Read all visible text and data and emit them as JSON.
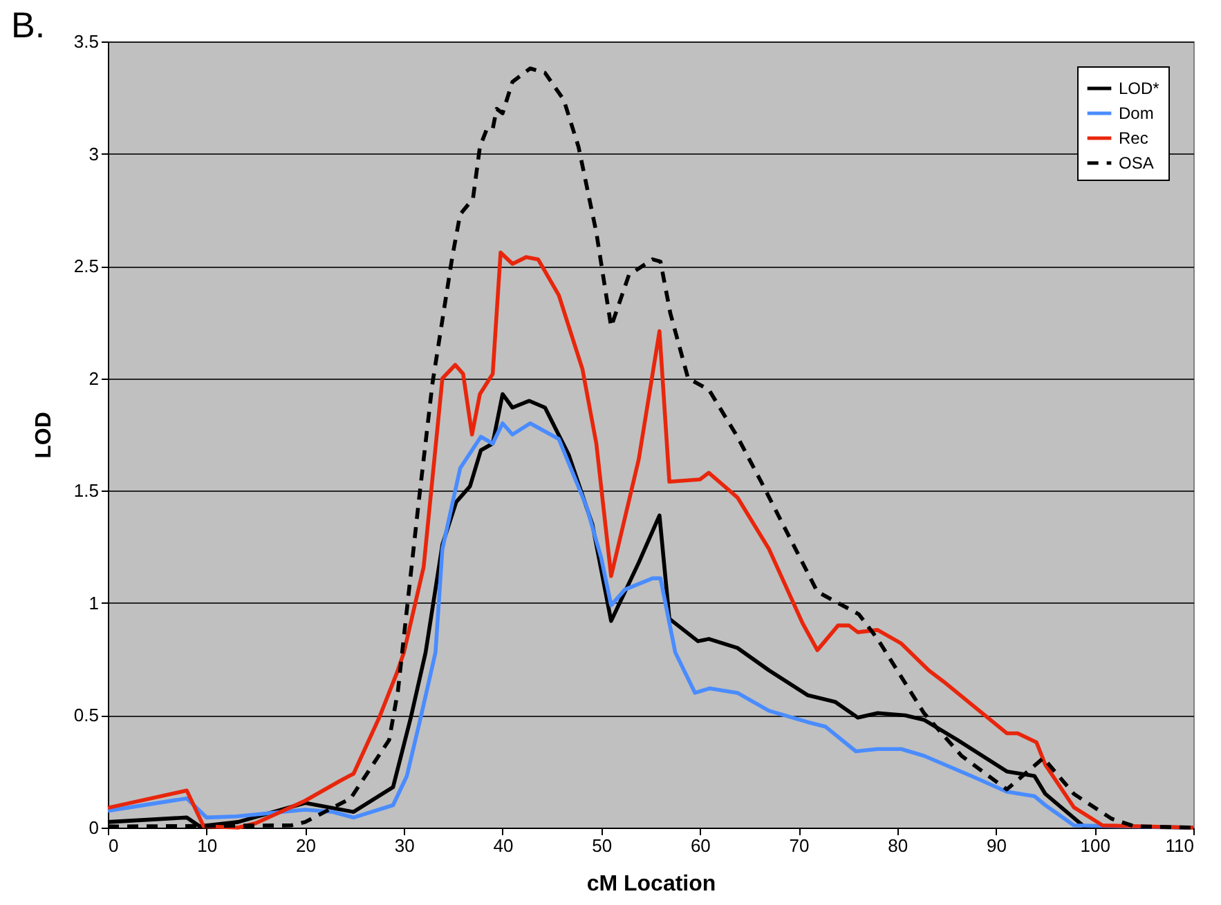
{
  "chart_data": {
    "type": "line",
    "xlabel": "cM Location",
    "ylabel": "LOD",
    "annotations": [
      "B."
    ],
    "xlim": [
      0,
      110
    ],
    "xticks": [
      0,
      10,
      20,
      30,
      40,
      50,
      60,
      70,
      80,
      90,
      100,
      110
    ],
    "ylim": [
      0,
      3.5
    ],
    "yticks": [
      0,
      0.5,
      1,
      1.5,
      2,
      2.5,
      3,
      3.5
    ],
    "grid": "y",
    "legend": "top right",
    "marker": "none",
    "series": [
      {
        "name": "LOD*",
        "color": "#000000",
        "line_style": "solid",
        "x": [
          0,
          8,
          9.3,
          13.2,
          20,
          24.9,
          28.9,
          30.7,
          32.2,
          33.9,
          35.3,
          36.7,
          37.8,
          39,
          40,
          41,
          42.7,
          44.3,
          46.7,
          49.1,
          51,
          53.8,
          55.9,
          56.9,
          59.8,
          60.9,
          63.8,
          67,
          70.9,
          73.7,
          76,
          78,
          80.8,
          82.7,
          86.1,
          91.1,
          93.9,
          95,
          98.9,
          110
        ],
        "values": [
          0.025,
          0.045,
          0.006,
          0.025,
          0.11,
          0.07,
          0.18,
          0.49,
          0.78,
          1.26,
          1.45,
          1.52,
          1.68,
          1.71,
          1.93,
          1.87,
          1.9,
          1.87,
          1.66,
          1.35,
          0.92,
          1.18,
          1.39,
          0.93,
          0.83,
          0.84,
          0.8,
          0.7,
          0.59,
          0.56,
          0.49,
          0.51,
          0.5,
          0.48,
          0.39,
          0.25,
          0.23,
          0.15,
          0.006,
          0
        ]
      },
      {
        "name": "Dom",
        "color": "#4a8cff",
        "line_style": "solid",
        "x": [
          0,
          8,
          10,
          13,
          20,
          22.8,
          24.9,
          28.9,
          30.3,
          31.7,
          33.2,
          33.9,
          35.7,
          37.8,
          39,
          40,
          41,
          42.8,
          45.7,
          48.5,
          50,
          51,
          52.4,
          55.2,
          56,
          57.5,
          59.5,
          61,
          63.8,
          67,
          70.9,
          72.7,
          75.8,
          78,
          80.4,
          82.7,
          87.5,
          91.1,
          93.9,
          95,
          97.9,
          110
        ],
        "values": [
          0.075,
          0.13,
          0.045,
          0.05,
          0.08,
          0.07,
          0.045,
          0.1,
          0.23,
          0.49,
          0.78,
          1.24,
          1.6,
          1.74,
          1.71,
          1.8,
          1.75,
          1.8,
          1.73,
          1.43,
          1.2,
          0.99,
          1.06,
          1.11,
          1.11,
          0.78,
          0.6,
          0.62,
          0.6,
          0.52,
          0.47,
          0.45,
          0.34,
          0.35,
          0.35,
          0.32,
          0.23,
          0.16,
          0.14,
          0.1,
          0.01,
          0
        ]
      },
      {
        "name": "Rec",
        "color": "#e8260c",
        "line_style": "solid",
        "x": [
          0,
          8,
          9.7,
          13.2,
          15,
          20,
          23.6,
          24.9,
          27.5,
          29.3,
          30,
          32,
          33.9,
          35.2,
          36,
          36.9,
          37.7,
          39,
          39.8,
          41,
          42.4,
          43.6,
          45.7,
          48.1,
          49.5,
          51,
          53.8,
          55.9,
          56.9,
          60,
          60.9,
          63.8,
          67,
          70.4,
          71.9,
          74,
          75.1,
          76,
          78,
          80.4,
          83.2,
          84.7,
          91.1,
          92.2,
          94.1,
          95,
          97.9,
          100.8,
          110
        ],
        "values": [
          0.088,
          0.165,
          0.006,
          0,
          0.02,
          0.12,
          0.21,
          0.24,
          0.49,
          0.69,
          0.78,
          1.16,
          2,
          2.06,
          2.02,
          1.75,
          1.93,
          2.02,
          2.56,
          2.51,
          2.54,
          2.53,
          2.37,
          2.04,
          1.71,
          1.12,
          1.64,
          2.21,
          1.54,
          1.55,
          1.58,
          1.47,
          1.24,
          0.91,
          0.79,
          0.9,
          0.9,
          0.87,
          0.88,
          0.82,
          0.7,
          0.65,
          0.42,
          0.42,
          0.38,
          0.28,
          0.09,
          0.01,
          0
        ]
      },
      {
        "name": "OSA",
        "color": "#000000",
        "line_style": "dashed",
        "x": [
          0,
          18.6,
          20,
          24.6,
          28.5,
          29.4,
          31.5,
          32.9,
          34.9,
          35.7,
          37,
          37.7,
          38.4,
          39,
          39.4,
          40,
          41,
          42.8,
          44.3,
          46.2,
          47.7,
          49.5,
          51,
          52.8,
          55.2,
          56,
          57,
          58.8,
          60.9,
          63.8,
          66.2,
          71.9,
          76.1,
          78,
          82.7,
          86.5,
          91.1,
          94.8,
          97.9,
          101.7,
          104,
          110
        ],
        "values": [
          0.005,
          0.01,
          0.025,
          0.13,
          0.39,
          0.61,
          1.45,
          1.98,
          2.54,
          2.73,
          2.8,
          3.03,
          3.11,
          3.11,
          3.2,
          3.18,
          3.32,
          3.38,
          3.36,
          3.24,
          3.03,
          2.65,
          2.23,
          2.46,
          2.53,
          2.52,
          2.29,
          2,
          1.95,
          1.74,
          1.54,
          1.05,
          0.95,
          0.84,
          0.51,
          0.32,
          0.17,
          0.31,
          0.15,
          0.04,
          0.006,
          0
        ]
      }
    ]
  }
}
